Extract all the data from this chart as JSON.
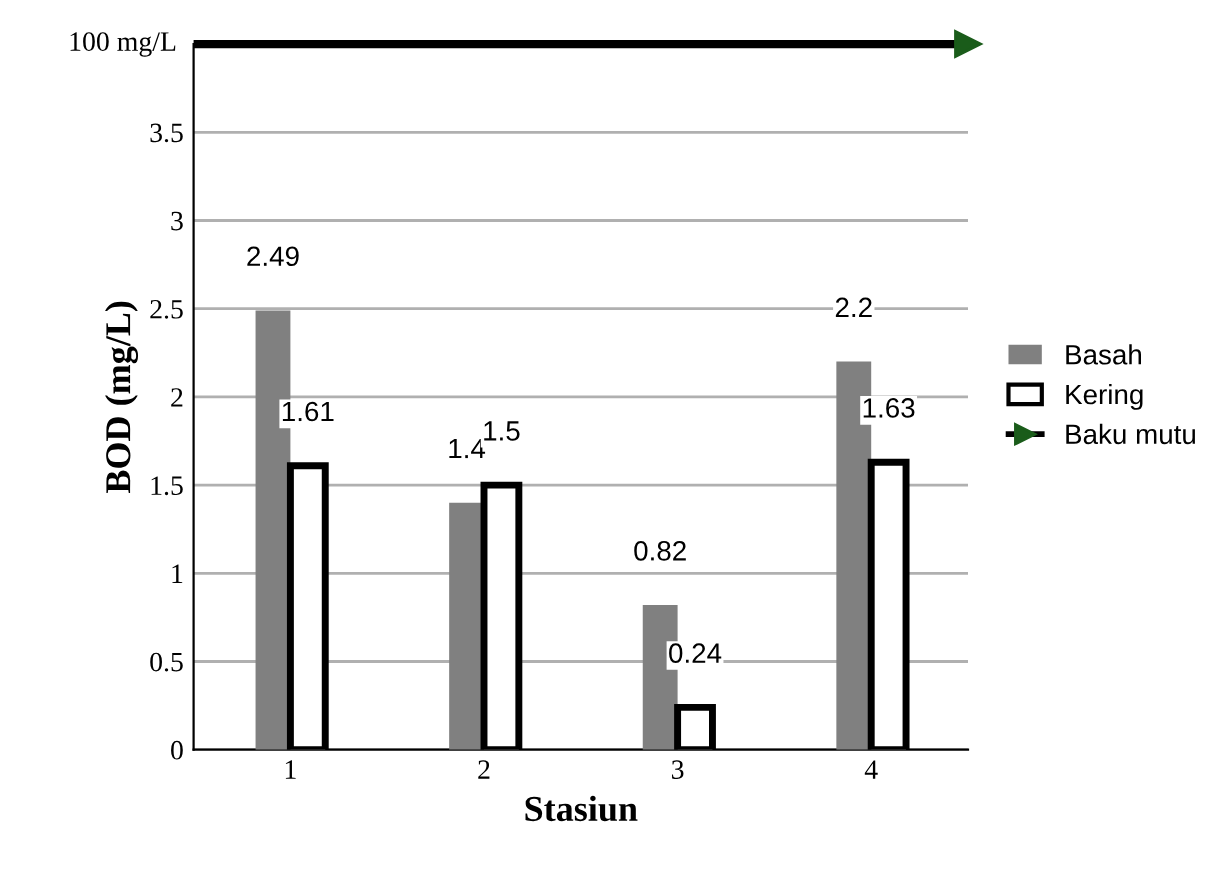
{
  "chart_data": {
    "type": "bar",
    "xlabel": "Stasiun",
    "ylabel": "BOD (mg/L)",
    "categories": [
      "1",
      "2",
      "3",
      "4"
    ],
    "series": [
      {
        "name": "Basah",
        "color": "#808080",
        "values": [
          2.49,
          1.4,
          0.82,
          2.2
        ]
      },
      {
        "name": "Kering",
        "color": "#ffffff",
        "values": [
          1.61,
          1.5,
          0.24,
          1.63
        ]
      }
    ],
    "ylim": [
      0,
      4
    ],
    "yticks": [
      0,
      0.5,
      1,
      1.5,
      2,
      2.5,
      3,
      3.5
    ],
    "annotations": [
      "100 mg/L"
    ],
    "ref_lines": [
      {
        "axis": "y",
        "value": 4,
        "label": "Baku mutu",
        "color": "#000000"
      }
    ],
    "data_labels": true,
    "grid": "y",
    "legend": "right"
  }
}
